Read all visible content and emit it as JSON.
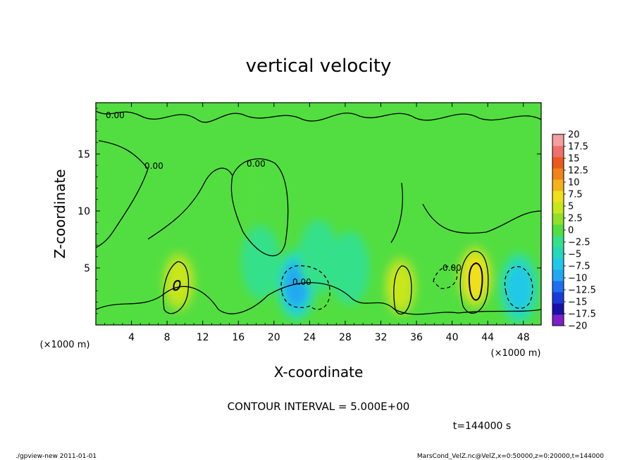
{
  "chart_data": {
    "type": "heatmap",
    "title": "vertical velocity",
    "xlabel": "X-coordinate",
    "ylabel": "Z-coordinate",
    "x_unit_left": "(×1000 m)",
    "x_unit_right": "(×1000 m)",
    "xlim": [
      0,
      50
    ],
    "ylim": [
      0,
      19.5
    ],
    "x_ticks": [
      4,
      8,
      12,
      16,
      20,
      24,
      28,
      32,
      36,
      40,
      44,
      48
    ],
    "y_ticks": [
      5,
      10,
      15
    ],
    "colorbar": {
      "levels": [
        -20,
        -17.5,
        -15,
        -12.5,
        -10,
        -7.5,
        -5,
        -2.5,
        0,
        2.5,
        5,
        7.5,
        10,
        12.5,
        15,
        17.5,
        20
      ],
      "labels": [
        "20",
        "17.5",
        "15",
        "12.5",
        "10",
        "7.5",
        "5",
        "2.5",
        "0",
        "−2.5",
        "−5",
        "−7.5",
        "−10",
        "−12.5",
        "−15",
        "−17.5",
        "−20"
      ],
      "colors": [
        "#7e1fc8",
        "#1a10a8",
        "#1a3bd8",
        "#1f6ef0",
        "#21a8f0",
        "#20c8e8",
        "#25d8b8",
        "#35e08a",
        "#52de40",
        "#8fe02a",
        "#c8e61e",
        "#f0e01c",
        "#f3b21a",
        "#f08418",
        "#ea5a1e",
        "#f0706c",
        "#f5a0a0"
      ]
    },
    "features": [
      {
        "kind": "updraft",
        "x": 9.3,
        "z": 3.8,
        "peak": 8
      },
      {
        "kind": "updraft",
        "x": 34.2,
        "z": 3.4,
        "peak": 7
      },
      {
        "kind": "updraft",
        "x": 42.6,
        "z": 4.2,
        "peak": 11
      },
      {
        "kind": "downdraft",
        "x": 22.5,
        "z": 3.5,
        "peak": -9
      },
      {
        "kind": "downdraft",
        "x": 47.5,
        "z": 3.2,
        "peak": -7
      },
      {
        "kind": "downdraft",
        "x": 25.0,
        "z": 6.0,
        "peak": -3
      },
      {
        "kind": "downdraft",
        "x": 28.5,
        "z": 5.0,
        "peak": -2.5
      },
      {
        "kind": "downdraft",
        "x": 18.5,
        "z": 5.5,
        "peak": -2
      },
      {
        "kind": "updraft",
        "x": 16.5,
        "z": 12.0,
        "peak": 2
      }
    ],
    "contour_labels": [
      "0.00",
      "0.00",
      "0.00",
      "0.00",
      "0.00"
    ]
  },
  "footer": {
    "contour_interval": "CONTOUR INTERVAL = 5.000E+00",
    "time": "t=144000 s",
    "program": "./gpview-new   2011-01-01",
    "source": "MarsCond_VelZ.nc@VelZ,x=0:50000,z=0:20000,t=144000"
  }
}
